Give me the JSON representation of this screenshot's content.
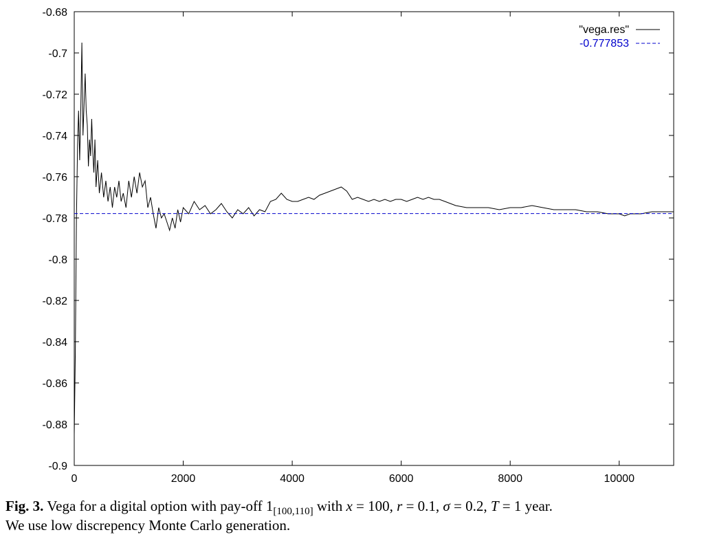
{
  "chart_data": {
    "type": "line",
    "title": "",
    "xlabel": "",
    "ylabel": "",
    "xlim": [
      0,
      11000
    ],
    "ylim": [
      -0.9,
      -0.68
    ],
    "xticks": [
      0,
      2000,
      4000,
      6000,
      8000,
      10000
    ],
    "yticks": [
      -0.68,
      -0.7,
      -0.72,
      -0.74,
      -0.76,
      -0.78,
      -0.8,
      -0.82,
      -0.84,
      -0.86,
      -0.88,
      -0.9
    ],
    "grid": false,
    "legend_position": "top-right",
    "series": [
      {
        "name": "\"vega.res\"",
        "style": "solid",
        "color": "#000000",
        "x": [
          0,
          20,
          40,
          60,
          80,
          100,
          120,
          140,
          160,
          180,
          200,
          220,
          240,
          260,
          280,
          300,
          320,
          340,
          360,
          380,
          400,
          430,
          460,
          500,
          540,
          580,
          620,
          660,
          700,
          740,
          780,
          820,
          860,
          900,
          950,
          1000,
          1050,
          1100,
          1150,
          1200,
          1250,
          1300,
          1350,
          1400,
          1450,
          1500,
          1550,
          1600,
          1650,
          1700,
          1750,
          1800,
          1850,
          1900,
          1950,
          2000,
          2100,
          2200,
          2300,
          2400,
          2500,
          2600,
          2700,
          2800,
          2900,
          3000,
          3100,
          3200,
          3300,
          3400,
          3500,
          3600,
          3700,
          3800,
          3900,
          4000,
          4100,
          4200,
          4300,
          4400,
          4500,
          4600,
          4700,
          4800,
          4900,
          5000,
          5100,
          5200,
          5300,
          5400,
          5500,
          5600,
          5700,
          5800,
          5900,
          6000,
          6100,
          6200,
          6300,
          6400,
          6500,
          6600,
          6700,
          6800,
          6900,
          7000,
          7200,
          7400,
          7600,
          7800,
          8000,
          8200,
          8400,
          8600,
          8800,
          9000,
          9200,
          9400,
          9600,
          9800,
          10000,
          10100,
          10200,
          10400,
          10600,
          10800,
          11000
        ],
        "y": [
          -0.885,
          -0.845,
          -0.78,
          -0.745,
          -0.728,
          -0.752,
          -0.728,
          -0.695,
          -0.74,
          -0.725,
          -0.71,
          -0.728,
          -0.735,
          -0.755,
          -0.742,
          -0.75,
          -0.732,
          -0.748,
          -0.758,
          -0.742,
          -0.765,
          -0.752,
          -0.768,
          -0.758,
          -0.77,
          -0.762,
          -0.772,
          -0.765,
          -0.775,
          -0.765,
          -0.77,
          -0.762,
          -0.772,
          -0.768,
          -0.775,
          -0.762,
          -0.77,
          -0.76,
          -0.768,
          -0.758,
          -0.765,
          -0.762,
          -0.775,
          -0.77,
          -0.778,
          -0.785,
          -0.775,
          -0.78,
          -0.778,
          -0.782,
          -0.786,
          -0.78,
          -0.785,
          -0.776,
          -0.782,
          -0.775,
          -0.778,
          -0.772,
          -0.776,
          -0.774,
          -0.778,
          -0.776,
          -0.773,
          -0.777,
          -0.78,
          -0.776,
          -0.778,
          -0.775,
          -0.779,
          -0.776,
          -0.777,
          -0.772,
          -0.771,
          -0.768,
          -0.771,
          -0.772,
          -0.772,
          -0.771,
          -0.77,
          -0.771,
          -0.769,
          -0.768,
          -0.767,
          -0.766,
          -0.765,
          -0.767,
          -0.771,
          -0.77,
          -0.771,
          -0.772,
          -0.771,
          -0.772,
          -0.771,
          -0.772,
          -0.771,
          -0.771,
          -0.772,
          -0.771,
          -0.77,
          -0.771,
          -0.77,
          -0.771,
          -0.771,
          -0.772,
          -0.773,
          -0.774,
          -0.775,
          -0.775,
          -0.775,
          -0.776,
          -0.775,
          -0.775,
          -0.774,
          -0.775,
          -0.776,
          -0.776,
          -0.776,
          -0.777,
          -0.777,
          -0.778,
          -0.778,
          -0.779,
          -0.778,
          -0.778,
          -0.777,
          -0.777,
          -0.777
        ]
      },
      {
        "name": "-0.777853",
        "style": "dashed",
        "color": "#0000cc",
        "x": [
          0,
          11000
        ],
        "y": [
          -0.777853,
          -0.777853
        ]
      }
    ]
  },
  "caption": {
    "fig_label": "Fig. 3.",
    "part1": " Vega for a digital option with pay-off 1",
    "subscript": "[100,110]",
    "part2": " with ",
    "var_x": "x",
    "eq_x": " = 100, ",
    "var_r": "r",
    "eq_r": " = 0.1, ",
    "var_sigma": "σ",
    "eq_sigma": " = 0.2, ",
    "var_T": "T",
    "eq_T": " = 1 year.",
    "line2": "We use low discrepency Monte Carlo generation."
  }
}
